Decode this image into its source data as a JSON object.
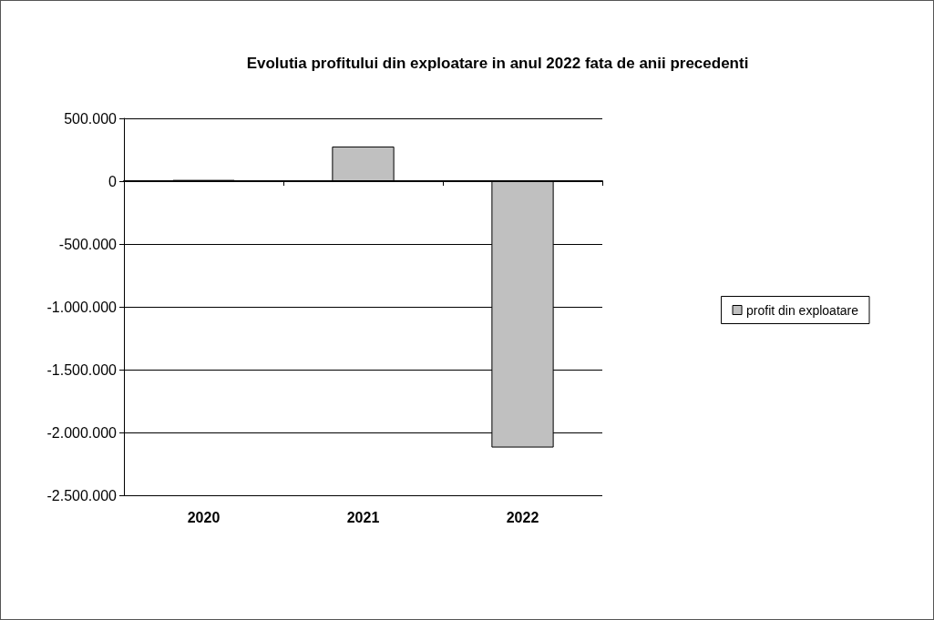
{
  "chart_data": {
    "type": "bar",
    "title": "Evolutia profitului din exploatare in anul 2022 fata de anii precedenti",
    "categories": [
      "2020",
      "2021",
      "2022"
    ],
    "series": [
      {
        "name": "profit din exploatare",
        "color": "#c0c0c0",
        "values": [
          10000,
          276000,
          -2120000
        ]
      }
    ],
    "ylim": [
      -2500000,
      500000
    ],
    "yticks": [
      {
        "value": 500000,
        "label": "500.000"
      },
      0,
      {
        "value": -500000,
        "label": "-500.000"
      },
      {
        "value": -1000000,
        "label": "-1.000.000"
      },
      {
        "value": -1500000,
        "label": "-1.500.000"
      },
      {
        "value": -2000000,
        "label": "-2.000.000"
      },
      {
        "value": -2500000,
        "label": "-2.500.000"
      }
    ],
    "grid": "y",
    "legend": "right"
  }
}
